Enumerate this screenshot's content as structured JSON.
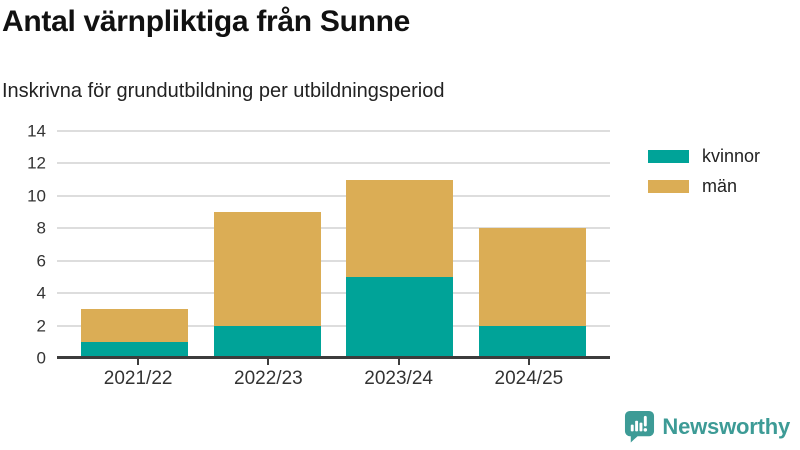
{
  "header": {
    "title": "Antal värnpliktiga från Sunne",
    "subtitle": "Inskrivna för grundutbildning per utbildningsperiod"
  },
  "chart_data": {
    "type": "bar",
    "stacked": true,
    "title": "Antal värnpliktiga från Sunne",
    "subtitle": "Inskrivna för grundutbildning per utbildningsperiod",
    "categories": [
      "2021/22",
      "2022/23",
      "2023/24",
      "2024/25"
    ],
    "series": [
      {
        "name": "kvinnor",
        "color": "#00a398",
        "values": [
          1,
          2,
          5,
          2
        ]
      },
      {
        "name": "män",
        "color": "#dbad55",
        "values": [
          2,
          7,
          6,
          6
        ]
      }
    ],
    "stack_totals": [
      3,
      9,
      11,
      8
    ],
    "ylim": [
      0,
      14
    ],
    "yticks": [
      0,
      2,
      4,
      6,
      8,
      10,
      12,
      14
    ],
    "xlabel": "",
    "ylabel": "",
    "grid": "horizontal",
    "gridline_color": "#dddddd",
    "axis_color": "#3c3c3c",
    "legend_position": "right-top"
  },
  "branding": {
    "logo_text": "Newsworthy",
    "logo_color": "#3d9b96",
    "logo_icon": "bar-chart-speech-bubble-icon"
  }
}
